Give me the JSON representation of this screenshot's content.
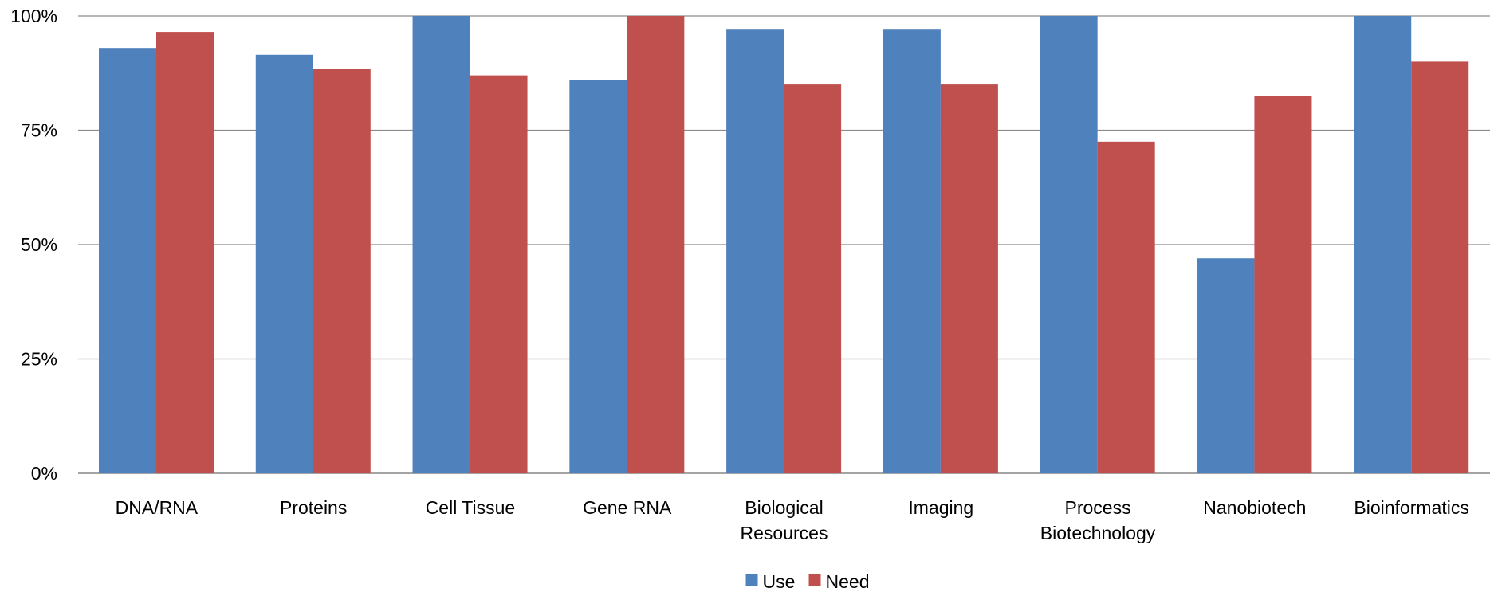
{
  "chart_data": {
    "type": "bar",
    "categories": [
      [
        "DNA/RNA"
      ],
      [
        "Proteins"
      ],
      [
        "Cell Tissue"
      ],
      [
        "Gene RNA"
      ],
      [
        "Biological",
        "Resources"
      ],
      [
        "Imaging"
      ],
      [
        "Process",
        "Biotechnology"
      ],
      [
        "Nanobiotech"
      ],
      [
        "Bioinformatics"
      ]
    ],
    "series": [
      {
        "name": "Use",
        "color": "#4F81BD",
        "values": [
          93,
          91.5,
          100,
          86,
          97,
          97,
          100,
          47,
          100
        ]
      },
      {
        "name": "Need",
        "color": "#C0504D",
        "values": [
          96.5,
          88.5,
          87,
          100,
          85,
          85,
          72.5,
          82.5,
          90
        ]
      }
    ],
    "ylim": [
      0,
      100
    ],
    "yticks": [
      0,
      25,
      50,
      75,
      100
    ],
    "ytick_labels": [
      "0%",
      "25%",
      "50%",
      "75%",
      "100%"
    ],
    "grid": true,
    "legend_position": "bottom-center",
    "title": "",
    "xlabel": "",
    "ylabel": ""
  }
}
